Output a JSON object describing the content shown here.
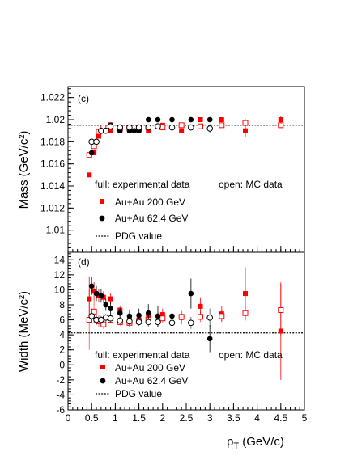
{
  "chart_data": [
    {
      "type": "scatter",
      "panel_label": "(c)",
      "ylabel": "Mass (GeV/c²)",
      "xlim": [
        0,
        5
      ],
      "ylim": [
        1.008,
        1.023
      ],
      "yticks_major": [
        "1.01",
        "1.012",
        "1.014",
        "1.016",
        "1.018",
        "1.02",
        "1.022"
      ],
      "reference_line": {
        "label": "PDG value",
        "value": 1.0195
      },
      "legend": {
        "note_full": "full: experimental data",
        "note_open": "open: MC data",
        "entries": [
          "Au+Au 200 GeV",
          "Au+Au 62.4 GeV"
        ]
      },
      "series": [
        {
          "name": "Au+Au 200 GeV",
          "kind": "experimental",
          "marker": "square-filled",
          "color": "#ff0000",
          "x": [
            0.45,
            0.55,
            0.65,
            0.75,
            0.9,
            1.1,
            1.3,
            1.5,
            1.7,
            2.0,
            2.4,
            2.8,
            3.25,
            3.75,
            4.5
          ],
          "y": [
            1.015,
            1.017,
            1.0185,
            1.019,
            1.019,
            1.019,
            1.019,
            1.019,
            1.019,
            1.0195,
            1.019,
            1.02,
            1.02,
            1.019,
            1.02
          ],
          "err": [
            0.0002,
            0.0002,
            0.0002,
            0.0002,
            0.0002,
            0.0002,
            0.0002,
            0.0002,
            0.0002,
            0.0002,
            0.0002,
            0.0002,
            0.0002,
            0.0006,
            0.0003
          ]
        },
        {
          "name": "Au+Au 200 GeV",
          "kind": "mc",
          "marker": "square-open",
          "color": "#ff0000",
          "x": [
            0.45,
            0.55,
            0.65,
            0.75,
            0.9,
            1.1,
            1.3,
            1.5,
            1.7,
            2.0,
            2.4,
            2.8,
            3.25,
            3.75,
            4.5
          ],
          "y": [
            1.0168,
            1.0176,
            1.0189,
            1.0193,
            1.0195,
            1.0193,
            1.0193,
            1.0193,
            1.0193,
            1.0193,
            1.0195,
            1.0194,
            1.0195,
            1.0197,
            1.0195
          ],
          "err": [
            0.0002,
            0.0002,
            0.0002,
            0.0002,
            0.0002,
            0.0002,
            0.0002,
            0.0002,
            0.0002,
            0.0002,
            0.0002,
            0.0002,
            0.0002,
            0.0004,
            0.0002
          ]
        },
        {
          "name": "Au+Au 62.4 GeV",
          "kind": "experimental",
          "marker": "circle-filled",
          "color": "#000000",
          "x": [
            0.5,
            0.6,
            0.7,
            0.8,
            0.9,
            1.1,
            1.3,
            1.4,
            1.5,
            1.7,
            1.9,
            2.2,
            2.6,
            3.0
          ],
          "y": [
            1.017,
            1.018,
            1.019,
            1.019,
            1.0195,
            1.019,
            1.019,
            1.019,
            1.019,
            1.02,
            1.02,
            1.02,
            1.02,
            1.02
          ],
          "err": [
            0.0002,
            0.0002,
            0.0002,
            0.0002,
            0.0002,
            0.0002,
            0.0002,
            0.0002,
            0.0002,
            0.0002,
            0.0002,
            0.0002,
            0.0002,
            0.0002
          ]
        },
        {
          "name": "Au+Au 62.4 GeV",
          "kind": "mc",
          "marker": "circle-open",
          "color": "#000000",
          "x": [
            0.5,
            0.6,
            0.7,
            0.8,
            0.9,
            1.1,
            1.3,
            1.5,
            1.7,
            1.9,
            2.2,
            2.6,
            3.0
          ],
          "y": [
            1.018,
            1.018,
            1.019,
            1.019,
            1.0194,
            1.0193,
            1.0193,
            1.0193,
            1.0193,
            1.0194,
            1.0193,
            1.0193,
            1.0192
          ],
          "err": [
            0.0002,
            0.0002,
            0.0002,
            0.0002,
            0.0002,
            0.0002,
            0.0002,
            0.0002,
            0.0002,
            0.0002,
            0.0002,
            0.0002,
            0.0004
          ]
        }
      ]
    },
    {
      "type": "scatter",
      "panel_label": "(d)",
      "ylabel": "Width (MeV/c²)",
      "xlabel": "p_T (GeV/c)",
      "xlim": [
        0,
        5
      ],
      "ylim": [
        -6,
        15
      ],
      "xticks": [
        "0",
        "0.5",
        "1",
        "1.5",
        "2",
        "2.5",
        "3",
        "3.5",
        "4",
        "4.5",
        "5"
      ],
      "yticks_major": [
        "-6",
        "-4",
        "-2",
        "0",
        "2",
        "4",
        "6",
        "8",
        "10",
        "12",
        "14"
      ],
      "reference_line": {
        "label": "PDG value",
        "value": 4.26
      },
      "legend": {
        "note_full": "full: experimental data",
        "note_open": "open: MC data",
        "entries": [
          "Au+Au 200 GeV",
          "Au+Au 62.4 GeV"
        ]
      },
      "series": [
        {
          "name": "Au+Au 200 GeV",
          "kind": "experimental",
          "marker": "square-filled",
          "color": "#ff0000",
          "x": [
            0.45,
            0.55,
            0.65,
            0.75,
            0.9,
            1.1,
            1.3,
            1.5,
            1.7,
            2.0,
            2.4,
            2.8,
            3.25,
            3.75,
            4.5
          ],
          "y": [
            8.8,
            9.8,
            9.2,
            9.0,
            8.8,
            7.3,
            6.0,
            6.0,
            6.5,
            6.7,
            6.3,
            7.8,
            6.8,
            9.5,
            4.5
          ],
          "err": [
            3.0,
            1.2,
            0.9,
            0.8,
            0.7,
            0.6,
            0.6,
            0.6,
            0.7,
            0.8,
            0.9,
            1.2,
            1.0,
            3.5,
            6.5
          ]
        },
        {
          "name": "Au+Au 200 GeV",
          "kind": "mc",
          "marker": "square-open",
          "color": "#ff0000",
          "x": [
            0.45,
            0.55,
            0.65,
            0.75,
            0.9,
            1.1,
            1.3,
            1.5,
            1.7,
            2.0,
            2.4,
            2.8,
            3.25,
            3.75,
            4.5
          ],
          "y": [
            6.0,
            7.1,
            5.8,
            5.4,
            6.0,
            5.7,
            5.6,
            5.8,
            6.0,
            6.2,
            6.4,
            6.4,
            6.5,
            6.9,
            7.3
          ],
          "err": [
            4.0,
            1.5,
            0.8,
            0.6,
            0.5,
            0.5,
            0.5,
            0.5,
            0.5,
            0.6,
            0.6,
            0.7,
            0.8,
            1.0,
            3.5
          ]
        },
        {
          "name": "Au+Au 62.4 GeV",
          "kind": "experimental",
          "marker": "circle-filled",
          "color": "#000000",
          "x": [
            0.5,
            0.6,
            0.7,
            0.8,
            0.9,
            1.1,
            1.3,
            1.5,
            1.7,
            1.9,
            2.2,
            2.6,
            3.0
          ],
          "y": [
            10.5,
            9.5,
            9.2,
            8.0,
            7.5,
            6.9,
            6.5,
            6.6,
            6.9,
            6.5,
            6.5,
            9.5,
            3.5
          ],
          "err": [
            1.2,
            1.0,
            0.9,
            0.8,
            0.8,
            0.7,
            0.8,
            0.9,
            1.2,
            1.4,
            1.5,
            2.0,
            1.8
          ]
        },
        {
          "name": "Au+Au 62.4 GeV",
          "kind": "mc",
          "marker": "circle-open",
          "color": "#000000",
          "x": [
            0.5,
            0.6,
            0.7,
            0.8,
            0.9,
            1.1,
            1.3,
            1.5,
            1.7,
            1.9,
            2.2,
            2.6,
            3.0
          ],
          "y": [
            6.5,
            6.0,
            6.0,
            6.3,
            6.2,
            5.9,
            5.8,
            5.7,
            5.7,
            5.7,
            5.6,
            5.6,
            6.3
          ],
          "err": [
            1.0,
            0.7,
            0.5,
            0.5,
            0.5,
            0.5,
            0.5,
            0.5,
            0.6,
            0.6,
            0.7,
            0.8,
            1.2
          ]
        }
      ]
    }
  ]
}
